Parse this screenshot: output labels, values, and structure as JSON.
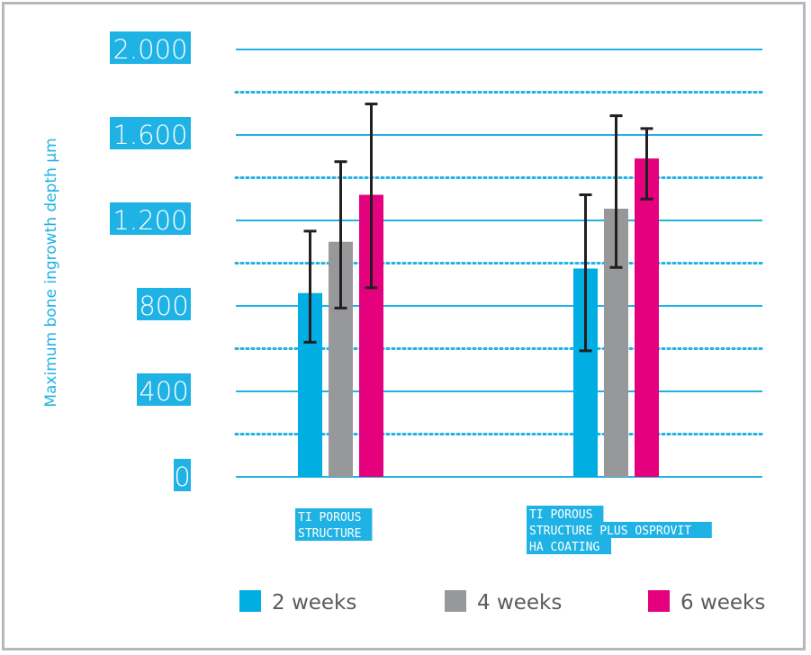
{
  "chart_data": {
    "type": "bar",
    "title": "",
    "xlabel": "",
    "ylabel": "Maximum bone ingrowth depth µm",
    "ylim": [
      0,
      2000
    ],
    "major_ticks": [
      0,
      400,
      800,
      1200,
      1600,
      2000
    ],
    "tick_labels": [
      "0",
      "400",
      "800",
      "1.200",
      "1.600",
      "2.000"
    ],
    "minor_ticks_dotted": [
      200,
      600,
      1000,
      1400,
      1800
    ],
    "grid": true,
    "legend_position": "bottom",
    "categories": [
      [
        "TI POROUS",
        "STRUCTURE"
      ],
      [
        "TI POROUS",
        "STRUCTURE PLUS OSPROVIT",
        "HA COATING"
      ]
    ],
    "series": [
      {
        "name": "2 weeks",
        "color": "#00aee3",
        "values": [
          860,
          975
        ],
        "err_low": [
          630,
          590
        ],
        "err_high": [
          1150,
          1320
        ]
      },
      {
        "name": "4 weeks",
        "color": "#97989a",
        "values": [
          1100,
          1255
        ],
        "err_low": [
          790,
          980
        ],
        "err_high": [
          1475,
          1690
        ]
      },
      {
        "name": "6 weeks",
        "color": "#e5007d",
        "values": [
          1320,
          1490
        ],
        "err_low": [
          885,
          1300
        ],
        "err_high": [
          1745,
          1630
        ]
      }
    ],
    "colors": {
      "axis_text": "#1fb2e4",
      "gridline": "#1fb2e4",
      "errorbar": "#231f20",
      "frame": "#b7b8ba"
    }
  }
}
